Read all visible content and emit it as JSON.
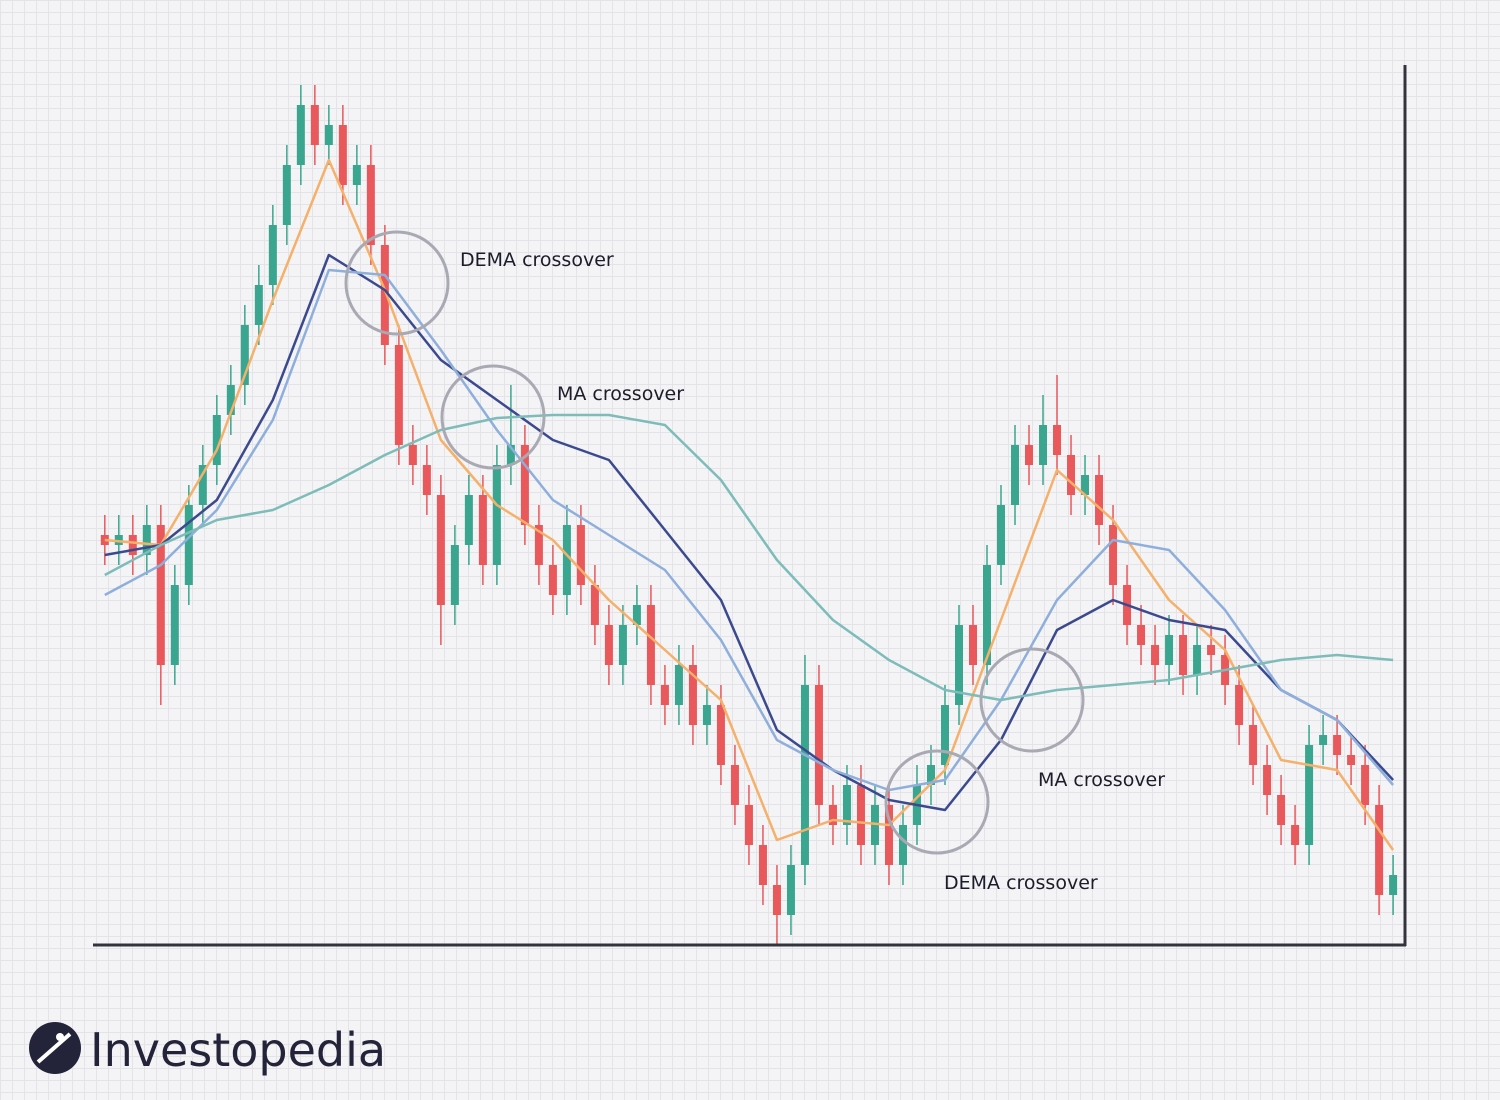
{
  "chart_data": {
    "type": "candlestick",
    "open": [
      41,
      40,
      41,
      39,
      42,
      28,
      36,
      44,
      48,
      53,
      56,
      62,
      66,
      72,
      78,
      84,
      80,
      82,
      76,
      78,
      70,
      60,
      50,
      48,
      45,
      34,
      40,
      45,
      38,
      48,
      50,
      42,
      38,
      35,
      42,
      36,
      32,
      28,
      32,
      34,
      26,
      24,
      28,
      22,
      24,
      18,
      14,
      10,
      6,
      3,
      8,
      26,
      14,
      12,
      16,
      10,
      14,
      8,
      12,
      16,
      18,
      24,
      32,
      28,
      38,
      44,
      50,
      48,
      52,
      49,
      45,
      47,
      42,
      36,
      32,
      30,
      28,
      31,
      27,
      30,
      29,
      26,
      22,
      18,
      15,
      12,
      10,
      20,
      21,
      19,
      18,
      14,
      5
    ],
    "high": [
      43,
      43,
      43,
      44,
      44,
      38,
      46,
      50,
      55,
      58,
      64,
      68,
      74,
      80,
      86,
      86,
      84,
      84,
      80,
      80,
      72,
      62,
      52,
      50,
      47,
      42,
      47,
      47,
      50,
      56,
      52,
      44,
      40,
      44,
      44,
      38,
      34,
      34,
      36,
      36,
      28,
      30,
      30,
      26,
      26,
      20,
      16,
      12,
      8,
      10,
      29,
      28,
      16,
      18,
      18,
      16,
      16,
      14,
      18,
      20,
      26,
      34,
      34,
      40,
      46,
      52,
      52,
      55,
      57,
      51,
      49,
      49,
      44,
      38,
      34,
      32,
      33,
      33,
      32,
      32,
      31,
      28,
      24,
      20,
      17,
      14,
      22,
      23,
      23,
      21,
      20,
      16,
      9
    ],
    "low": [
      38,
      38,
      37,
      37,
      24,
      26,
      34,
      42,
      46,
      51,
      54,
      60,
      64,
      70,
      76,
      78,
      78,
      74,
      74,
      68,
      58,
      48,
      46,
      43,
      30,
      32,
      38,
      36,
      36,
      46,
      40,
      36,
      33,
      33,
      34,
      30,
      26,
      26,
      30,
      24,
      22,
      22,
      20,
      20,
      16,
      12,
      8,
      4,
      0,
      1,
      6,
      12,
      10,
      10,
      8,
      8,
      6,
      6,
      10,
      14,
      16,
      22,
      26,
      26,
      36,
      42,
      46,
      46,
      47,
      43,
      43,
      40,
      34,
      30,
      28,
      26,
      26,
      25,
      25,
      27,
      24,
      20,
      16,
      13,
      10,
      8,
      8,
      18,
      17,
      16,
      12,
      3,
      3
    ],
    "close": [
      40,
      41,
      39,
      42,
      28,
      36,
      44,
      48,
      53,
      56,
      62,
      66,
      72,
      78,
      84,
      80,
      82,
      76,
      78,
      70,
      60,
      50,
      48,
      45,
      34,
      40,
      45,
      38,
      48,
      50,
      42,
      38,
      35,
      42,
      36,
      32,
      28,
      32,
      34,
      26,
      24,
      28,
      22,
      24,
      18,
      14,
      10,
      6,
      3,
      8,
      26,
      14,
      12,
      16,
      10,
      14,
      8,
      12,
      16,
      18,
      24,
      32,
      28,
      38,
      44,
      50,
      48,
      52,
      49,
      45,
      47,
      42,
      36,
      32,
      30,
      28,
      31,
      27,
      30,
      29,
      26,
      22,
      18,
      15,
      12,
      10,
      20,
      21,
      19,
      18,
      14,
      5,
      7
    ],
    "up_color": "#3aa68f",
    "down_color": "#e9585b",
    "xlim": [
      -0.7,
      92.85
    ],
    "ylim": [
      0,
      88
    ],
    "lines": {
      "x": [
        0,
        4,
        8,
        12,
        16,
        20,
        24,
        28,
        32,
        36,
        40,
        44,
        48,
        52,
        56,
        60,
        64,
        68,
        72,
        76,
        80,
        84,
        88,
        92
      ],
      "series": [
        {
          "color": "#f5b06a",
          "values": [
            40.5,
            40,
            49.5,
            64.5,
            78.5,
            65.5,
            50.5,
            44,
            40.5,
            34.5,
            29.5,
            24.5,
            10.5,
            12.5,
            12,
            17.5,
            32.5,
            47.5,
            42.5,
            34.5,
            29.5,
            18.5,
            17.5,
            9.5
          ]
        },
        {
          "color": "#3b4a8e",
          "values": [
            39,
            40,
            44.5,
            54.5,
            69,
            65.5,
            58.5,
            54.5,
            50.5,
            48.5,
            41.5,
            34.5,
            21.5,
            17.5,
            14.5,
            13.5,
            20.5,
            31.5,
            34.5,
            32.5,
            31.5,
            25.5,
            22.5,
            16.5
          ]
        },
        {
          "color": "#8eafdb",
          "values": [
            35,
            38,
            43.5,
            52.5,
            67.5,
            67,
            59.5,
            51.5,
            44.5,
            41,
            37.5,
            30.5,
            20.5,
            17.5,
            15.5,
            16.5,
            24.5,
            34.5,
            40.5,
            39.5,
            33.5,
            25.5,
            22.5,
            16
          ]
        },
        {
          "color": "#7dbcb8",
          "values": [
            37,
            40,
            42.5,
            43.5,
            46,
            49,
            51.5,
            52.7,
            53,
            53,
            52,
            46.5,
            38.5,
            32.5,
            28.5,
            25.5,
            24.5,
            25.5,
            26,
            26.5,
            27.5,
            28.5,
            29,
            28.5
          ]
        }
      ]
    },
    "annotations": [
      "DEMA crossover",
      "MA crossover",
      "MA crossover",
      "DEMA crossover"
    ]
  },
  "logo": "Investopedia"
}
